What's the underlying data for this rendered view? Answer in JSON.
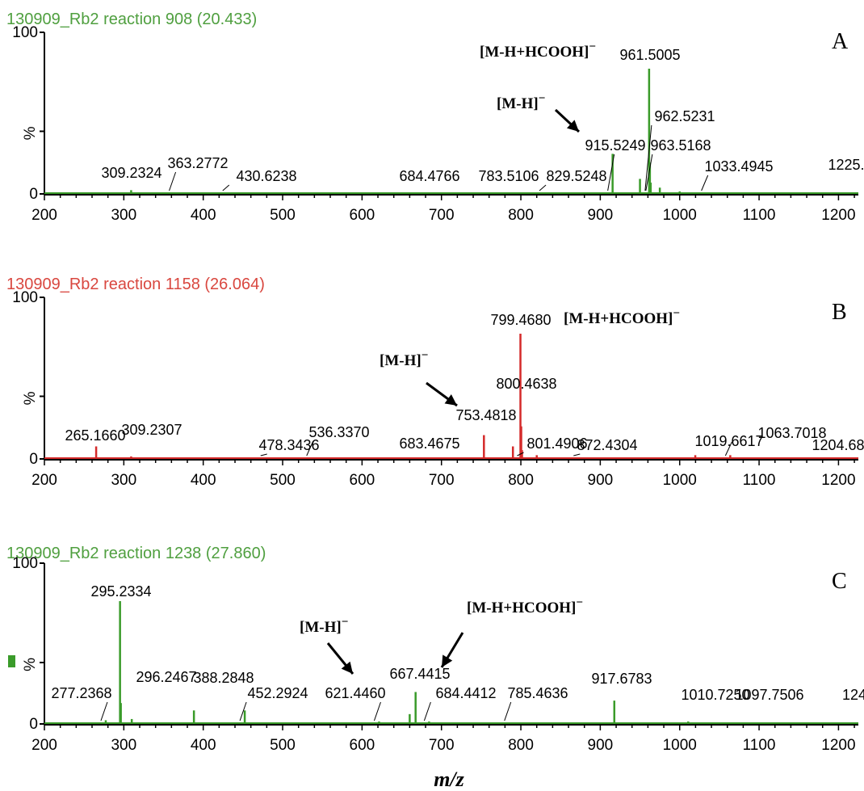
{
  "chart_data": [
    {
      "type": "bar",
      "panel_letter": "A",
      "title": "130909_Rb2 reaction 908 (20.433)",
      "title_color": "#4f9f3f",
      "bar_color": "#3a9b2a",
      "xlim": [
        200,
        1225
      ],
      "ylim": [
        0,
        100
      ],
      "x_ticks": [
        "200",
        "300",
        "400",
        "500",
        "600",
        "700",
        "800",
        "900",
        "1000",
        "1100",
        "1200"
      ],
      "y_ticks": [
        "0",
        "%",
        "100"
      ],
      "peaks": [
        {
          "mz": 309.23,
          "intensity": 3
        },
        {
          "mz": 363.28,
          "intensity": 1
        },
        {
          "mz": 430.62,
          "intensity": 1
        },
        {
          "mz": 684.48,
          "intensity": 1
        },
        {
          "mz": 783.51,
          "intensity": 1
        },
        {
          "mz": 829.52,
          "intensity": 1
        },
        {
          "mz": 915.52,
          "intensity": 32
        },
        {
          "mz": 950.0,
          "intensity": 12
        },
        {
          "mz": 961.5,
          "intensity": 100
        },
        {
          "mz": 962.52,
          "intensity": 25
        },
        {
          "mz": 963.52,
          "intensity": 9
        },
        {
          "mz": 975.0,
          "intensity": 5
        },
        {
          "mz": 1000.0,
          "intensity": 2
        },
        {
          "mz": 1033.49,
          "intensity": 1
        }
      ],
      "peak_labels": [
        "309.2324",
        "363.2772",
        "430.6238",
        "684.4766",
        "783.5106",
        "829.5248",
        "915.5249",
        "961.5005",
        "962.5231",
        "963.5168",
        "1033.4945",
        "1225."
      ],
      "annotations": [
        "[M-H+HCOOH]",
        "[M-H]"
      ]
    },
    {
      "type": "bar",
      "panel_letter": "B",
      "title": "130909_Rb2 reaction 1158 (26.064)",
      "title_color": "#d9473f",
      "bar_color": "#d42a2a",
      "xlim": [
        200,
        1225
      ],
      "ylim": [
        0,
        100
      ],
      "x_ticks": [
        "200",
        "300",
        "400",
        "500",
        "600",
        "700",
        "800",
        "900",
        "1000",
        "1100",
        "1200"
      ],
      "y_ticks": [
        "0",
        "%",
        "100"
      ],
      "peaks": [
        {
          "mz": 265.17,
          "intensity": 10
        },
        {
          "mz": 309.23,
          "intensity": 2
        },
        {
          "mz": 478.34,
          "intensity": 1
        },
        {
          "mz": 536.34,
          "intensity": 1
        },
        {
          "mz": 683.47,
          "intensity": 1
        },
        {
          "mz": 753.48,
          "intensity": 19
        },
        {
          "mz": 790.0,
          "intensity": 10
        },
        {
          "mz": 799.47,
          "intensity": 100
        },
        {
          "mz": 800.46,
          "intensity": 26
        },
        {
          "mz": 801.49,
          "intensity": 7
        },
        {
          "mz": 820.0,
          "intensity": 3
        },
        {
          "mz": 872.43,
          "intensity": 1
        },
        {
          "mz": 1019.66,
          "intensity": 3
        },
        {
          "mz": 1063.7,
          "intensity": 3
        },
        {
          "mz": 1204.68,
          "intensity": 1
        }
      ],
      "peak_labels": [
        "265.1660",
        "309.2307",
        "478.3436",
        "536.3370",
        "683.4675",
        "753.4818",
        "799.4680",
        "800.4638",
        "801.4906",
        "872.4304",
        "1019.6617",
        "1063.7018",
        "1204.68"
      ],
      "annotations": [
        "[M-H+HCOOH]",
        "[M-H]"
      ]
    },
    {
      "type": "bar",
      "panel_letter": "C",
      "title": "130909_Rb2 reaction 1238 (27.860)",
      "title_color": "#4f9f3f",
      "bar_color": "#3a9b2a",
      "xlim": [
        200,
        1225
      ],
      "ylim": [
        0,
        100
      ],
      "x_ticks": [
        "200",
        "300",
        "400",
        "500",
        "600",
        "700",
        "800",
        "900",
        "1000",
        "1100",
        "1200"
      ],
      "y_ticks": [
        "0",
        "%",
        "100"
      ],
      "peaks": [
        {
          "mz": 277.24,
          "intensity": 3
        },
        {
          "mz": 295.23,
          "intensity": 100
        },
        {
          "mz": 296.25,
          "intensity": 17
        },
        {
          "mz": 310.0,
          "intensity": 4
        },
        {
          "mz": 388.28,
          "intensity": 11
        },
        {
          "mz": 452.29,
          "intensity": 11
        },
        {
          "mz": 621.45,
          "intensity": 2
        },
        {
          "mz": 660.0,
          "intensity": 8
        },
        {
          "mz": 667.44,
          "intensity": 26
        },
        {
          "mz": 684.44,
          "intensity": 2
        },
        {
          "mz": 785.46,
          "intensity": 1
        },
        {
          "mz": 917.68,
          "intensity": 19
        },
        {
          "mz": 1010.73,
          "intensity": 2
        },
        {
          "mz": 1097.75,
          "intensity": 1
        }
      ],
      "peak_labels": [
        "277.2368",
        "295.2334",
        "296.2467",
        "388.2848",
        "452.2924",
        "621.4460",
        "667.4415",
        "684.4412",
        "785.4636",
        "917.6783",
        "1010.7250",
        "1097.7506",
        "124"
      ],
      "annotations": [
        "[M-H]",
        "[M-H+HCOOH]"
      ]
    }
  ],
  "superscript_minus": "−",
  "xlabel": "m/z"
}
